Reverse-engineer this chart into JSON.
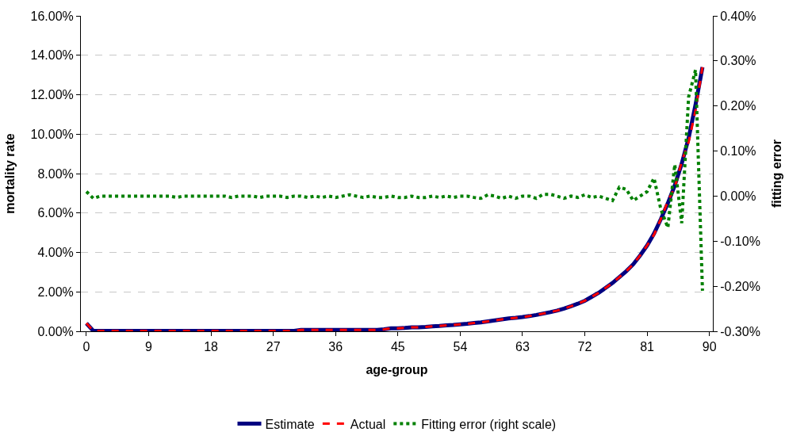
{
  "chart_data": {
    "type": "line",
    "xlabel": "age-group",
    "ylabel": "mortality rate",
    "y2label": "fitting error",
    "x": [
      0,
      1,
      2,
      3,
      4,
      5,
      6,
      7,
      8,
      9,
      10,
      11,
      12,
      13,
      14,
      15,
      16,
      17,
      18,
      19,
      20,
      21,
      22,
      23,
      24,
      25,
      26,
      27,
      28,
      29,
      30,
      31,
      32,
      33,
      34,
      35,
      36,
      37,
      38,
      39,
      40,
      41,
      42,
      43,
      44,
      45,
      46,
      47,
      48,
      49,
      50,
      51,
      52,
      53,
      54,
      55,
      56,
      57,
      58,
      59,
      60,
      61,
      62,
      63,
      64,
      65,
      66,
      67,
      68,
      69,
      70,
      71,
      72,
      73,
      74,
      75,
      76,
      77,
      78,
      79,
      80,
      81,
      82,
      83,
      84,
      85,
      86,
      87,
      88,
      89
    ],
    "series": [
      {
        "name": "Estimate",
        "color": "#000080",
        "line_style": "solid",
        "values": [
          0.4,
          0.02,
          0.02,
          0.02,
          0.02,
          0.02,
          0.02,
          0.02,
          0.02,
          0.02,
          0.02,
          0.02,
          0.02,
          0.02,
          0.02,
          0.02,
          0.02,
          0.02,
          0.02,
          0.02,
          0.02,
          0.02,
          0.02,
          0.02,
          0.02,
          0.02,
          0.02,
          0.02,
          0.02,
          0.02,
          0.02,
          0.07,
          0.07,
          0.07,
          0.07,
          0.07,
          0.07,
          0.07,
          0.07,
          0.07,
          0.07,
          0.07,
          0.07,
          0.1,
          0.15,
          0.15,
          0.17,
          0.2,
          0.2,
          0.22,
          0.25,
          0.27,
          0.3,
          0.32,
          0.35,
          0.38,
          0.42,
          0.45,
          0.5,
          0.55,
          0.6,
          0.65,
          0.68,
          0.72,
          0.77,
          0.83,
          0.9,
          0.97,
          1.05,
          1.15,
          1.27,
          1.4,
          1.55,
          1.75,
          1.95,
          2.2,
          2.45,
          2.75,
          3.05,
          3.4,
          3.85,
          4.35,
          4.95,
          5.7,
          6.5,
          7.4,
          8.5,
          9.8,
          11.5,
          13.4
        ]
      },
      {
        "name": "Actual",
        "color": "#ff0000",
        "line_style": "dashed",
        "values": [
          0.41,
          0.02,
          0.02,
          0.02,
          0.02,
          0.02,
          0.02,
          0.02,
          0.02,
          0.02,
          0.02,
          0.02,
          0.02,
          0.02,
          0.02,
          0.02,
          0.02,
          0.02,
          0.02,
          0.02,
          0.02,
          0.02,
          0.02,
          0.02,
          0.02,
          0.02,
          0.02,
          0.02,
          0.02,
          0.02,
          0.02,
          0.07,
          0.07,
          0.07,
          0.07,
          0.07,
          0.07,
          0.07,
          0.07,
          0.07,
          0.07,
          0.07,
          0.07,
          0.1,
          0.15,
          0.15,
          0.17,
          0.2,
          0.2,
          0.22,
          0.25,
          0.27,
          0.3,
          0.32,
          0.35,
          0.38,
          0.42,
          0.45,
          0.5,
          0.55,
          0.6,
          0.65,
          0.68,
          0.72,
          0.77,
          0.83,
          0.9,
          0.97,
          1.05,
          1.15,
          1.27,
          1.4,
          1.55,
          1.75,
          1.95,
          2.2,
          2.45,
          2.75,
          3.05,
          3.4,
          3.85,
          4.35,
          4.9,
          5.7,
          6.6,
          7.3,
          8.6,
          9.6,
          11.2,
          13.4
        ]
      },
      {
        "name": "Fitting error (right scale)",
        "color": "#008000",
        "line_style": "dotted",
        "axis": "y2",
        "values": [
          0.01,
          -0.005,
          0.0,
          0.0,
          0.0,
          0.0,
          0.0,
          0.0,
          0.0,
          0.0,
          0.0,
          0.0,
          0.0,
          -0.003,
          0.0,
          0.0,
          0.0,
          0.0,
          0.0,
          0.0,
          0.0,
          -0.003,
          0.0,
          0.0,
          0.0,
          -0.003,
          0.0,
          0.0,
          0.0,
          -0.003,
          0.0,
          0.0,
          -0.003,
          0.0,
          -0.003,
          0.0,
          -0.003,
          0.0,
          0.003,
          0.0,
          -0.003,
          0.0,
          -0.003,
          -0.003,
          0.0,
          -0.003,
          -0.003,
          0.0,
          -0.003,
          -0.003,
          0.0,
          -0.003,
          0.0,
          -0.003,
          0.0,
          0.0,
          -0.003,
          -0.005,
          0.003,
          0.0,
          -0.005,
          0.0,
          -0.005,
          0.0,
          0.0,
          -0.005,
          0.004,
          0.004,
          0.0,
          -0.005,
          0.0,
          -0.003,
          0.003,
          -0.003,
          0.0,
          -0.005,
          -0.01,
          0.02,
          0.015,
          -0.01,
          0.0,
          0.01,
          0.04,
          -0.03,
          -0.07,
          0.07,
          -0.06,
          0.22,
          0.28,
          -0.21
        ]
      }
    ],
    "xlim": [
      -0.8,
      90.5
    ],
    "xticks": [
      0,
      9,
      18,
      27,
      36,
      45,
      54,
      63,
      72,
      81,
      90
    ],
    "ylim": [
      0,
      16
    ],
    "yticks": [
      {
        "value": 0,
        "label": "0.00%"
      },
      {
        "value": 2,
        "label": "2.00%"
      },
      {
        "value": 4,
        "label": "4.00%"
      },
      {
        "value": 6,
        "label": "6.00%"
      },
      {
        "value": 8,
        "label": "8.00%"
      },
      {
        "value": 10,
        "label": "10.00%"
      },
      {
        "value": 12,
        "label": "12.00%"
      },
      {
        "value": 14,
        "label": "14.00%"
      },
      {
        "value": 16,
        "label": "16.00%"
      }
    ],
    "y2lim": [
      -0.3,
      0.4
    ],
    "y2ticks": [
      {
        "value": -0.3,
        "label": "-0.30%"
      },
      {
        "value": -0.2,
        "label": "-0.20%"
      },
      {
        "value": -0.1,
        "label": "-0.10%"
      },
      {
        "value": 0,
        "label": "0.00%"
      },
      {
        "value": 0.1,
        "label": "0.10%"
      },
      {
        "value": 0.2,
        "label": "0.20%"
      },
      {
        "value": 0.3,
        "label": "0.30%"
      },
      {
        "value": 0.4,
        "label": "0.40%"
      }
    ],
    "grid": "y",
    "legend": "bottom"
  }
}
